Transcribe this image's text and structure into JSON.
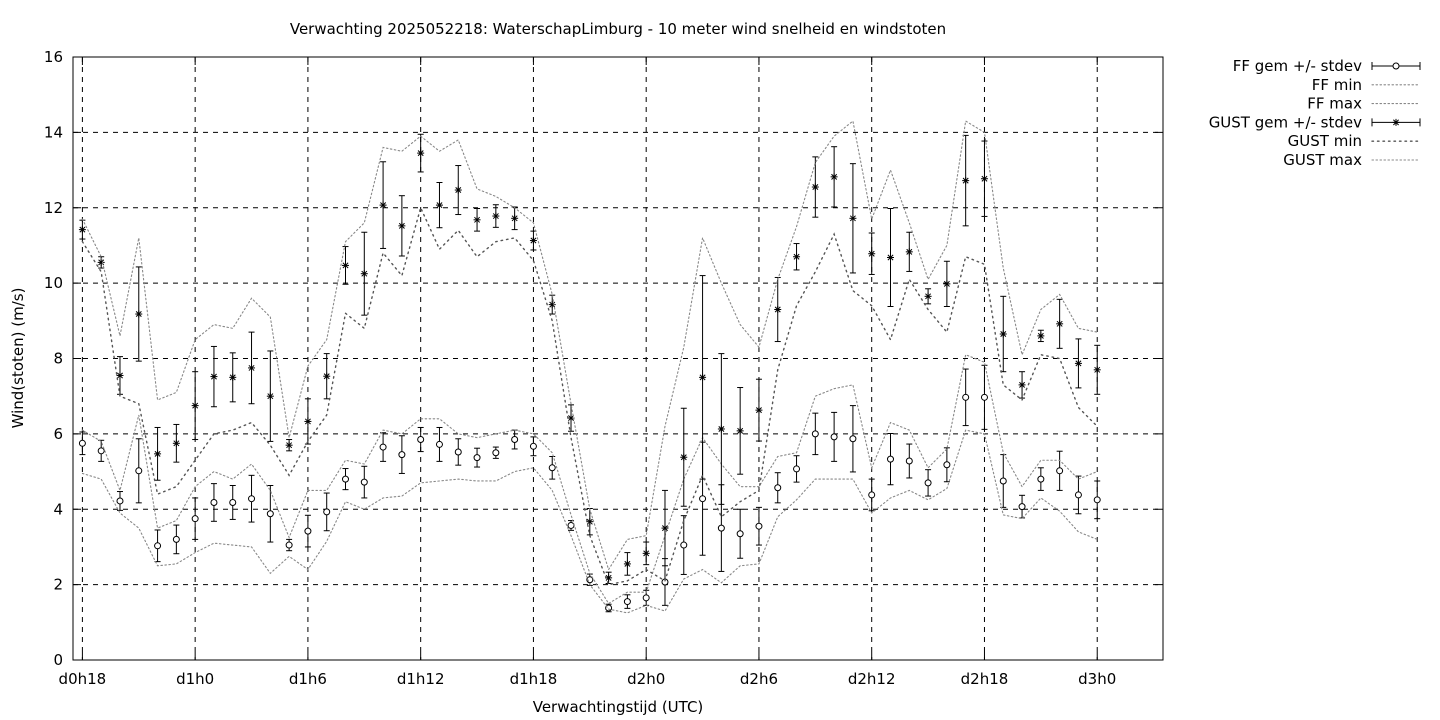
{
  "chart_data": {
    "type": "line",
    "title": "Verwachting 2025052218: WaterschapLimburg - 10 meter wind snelheid en windstoten",
    "xlabel": "Verwachtingstijd (UTC)",
    "ylabel": "Wind(stoten) (m/s)",
    "ylim": [
      0,
      16
    ],
    "yticks": [
      0,
      2,
      4,
      6,
      8,
      10,
      12,
      14,
      16
    ],
    "xlim": [
      -0.5,
      57.5
    ],
    "xtick_labels": [
      "d0h18",
      "d1h0",
      "d1h6",
      "d1h12",
      "d1h18",
      "d2h0",
      "d2h6",
      "d2h12",
      "d2h18",
      "d3h0"
    ],
    "xtick_positions": [
      0,
      6,
      12,
      18,
      24,
      30,
      36,
      42,
      48,
      54
    ],
    "grid": true,
    "legend_position": "outside-top-right",
    "series": [
      {
        "name": "FF gem +/- stdev",
        "style": "errorbar-circle",
        "values": [
          5.75,
          5.55,
          4.22,
          5.02,
          3.03,
          3.2,
          3.75,
          4.18,
          4.18,
          4.28,
          3.88,
          3.05,
          3.42,
          3.93,
          4.8,
          4.72,
          5.65,
          5.45,
          5.85,
          5.72,
          5.52,
          5.37,
          5.5,
          5.85,
          5.67,
          5.1,
          3.57,
          2.13,
          1.38,
          1.55,
          1.65,
          2.07,
          3.05,
          4.28,
          3.5,
          3.35,
          3.55,
          4.57,
          5.07,
          6.0,
          5.92,
          5.87,
          4.38,
          5.33,
          5.28,
          4.7,
          5.18,
          6.97,
          6.97,
          4.75,
          4.07,
          4.8,
          5.02,
          4.38,
          4.25
        ],
        "errors": [
          0.3,
          0.28,
          0.25,
          0.85,
          0.42,
          0.38,
          0.55,
          0.5,
          0.45,
          0.62,
          0.75,
          0.15,
          0.42,
          0.5,
          0.28,
          0.42,
          0.38,
          0.5,
          0.32,
          0.45,
          0.35,
          0.25,
          0.15,
          0.25,
          0.25,
          0.3,
          0.13,
          0.15,
          0.1,
          0.18,
          0.2,
          0.62,
          0.78,
          1.5,
          1.15,
          0.65,
          0.5,
          0.4,
          0.35,
          0.55,
          0.65,
          0.88,
          0.42,
          0.68,
          0.45,
          0.35,
          0.45,
          0.75,
          0.85,
          0.7,
          0.3,
          0.3,
          0.52,
          0.5,
          0.5
        ]
      },
      {
        "name": "FF min",
        "style": "dotted",
        "values": [
          4.95,
          4.8,
          3.9,
          3.5,
          2.5,
          2.55,
          2.85,
          3.1,
          3.05,
          3.0,
          2.3,
          2.75,
          2.4,
          3.15,
          4.2,
          4.0,
          4.3,
          4.35,
          4.7,
          4.75,
          4.8,
          4.75,
          4.75,
          5.0,
          5.1,
          4.5,
          3.3,
          2.0,
          1.35,
          1.25,
          1.45,
          1.3,
          2.15,
          2.4,
          2.05,
          2.5,
          2.55,
          3.8,
          4.25,
          4.8,
          4.8,
          4.8,
          3.9,
          4.3,
          4.5,
          4.25,
          4.55,
          6.1,
          6.0,
          3.85,
          3.75,
          4.3,
          3.95,
          3.4,
          3.2
        ]
      },
      {
        "name": "FF max",
        "style": "dotted",
        "values": [
          6.1,
          5.8,
          4.5,
          6.5,
          3.5,
          3.7,
          4.6,
          5.0,
          4.8,
          5.2,
          4.5,
          3.25,
          4.5,
          4.5,
          5.3,
          5.2,
          6.1,
          6.0,
          6.4,
          6.4,
          6.0,
          5.9,
          6.0,
          6.1,
          6.0,
          5.5,
          3.85,
          2.3,
          1.5,
          1.8,
          1.8,
          3.3,
          4.8,
          5.9,
          5.2,
          4.6,
          4.6,
          5.4,
          5.5,
          7.0,
          7.2,
          7.3,
          5.1,
          6.3,
          6.1,
          5.1,
          5.6,
          8.1,
          7.9,
          5.5,
          4.6,
          5.3,
          5.3,
          4.8,
          5.0
        ]
      },
      {
        "name": "GUST gem +/- stdev",
        "style": "errorbar-star",
        "values": [
          11.42,
          10.55,
          7.55,
          9.18,
          5.47,
          5.75,
          6.75,
          7.52,
          7.5,
          7.75,
          7.0,
          5.7,
          6.33,
          7.53,
          10.47,
          10.25,
          12.07,
          11.52,
          13.45,
          12.07,
          12.47,
          11.68,
          11.78,
          11.72,
          11.13,
          9.43,
          6.42,
          3.67,
          2.18,
          2.55,
          2.83,
          3.5,
          5.38,
          7.5,
          6.13,
          6.08,
          6.63,
          9.3,
          10.7,
          12.55,
          12.82,
          11.72,
          10.78,
          10.68,
          10.83,
          9.65,
          9.98,
          12.72,
          12.77,
          8.65,
          7.3,
          8.6,
          8.92,
          7.87,
          7.7
        ],
        "errors": [
          0.25,
          0.15,
          0.5,
          1.25,
          0.7,
          0.5,
          0.9,
          0.8,
          0.65,
          0.95,
          1.2,
          0.15,
          0.6,
          0.6,
          0.5,
          1.1,
          1.15,
          0.8,
          0.5,
          0.6,
          0.65,
          0.3,
          0.3,
          0.3,
          0.25,
          0.25,
          0.35,
          0.35,
          0.15,
          0.3,
          0.3,
          1.0,
          1.3,
          2.7,
          2.0,
          1.15,
          0.82,
          0.85,
          0.35,
          0.8,
          0.8,
          1.45,
          0.55,
          1.3,
          0.52,
          0.2,
          0.6,
          1.2,
          1.0,
          1.0,
          0.35,
          0.15,
          0.65,
          0.65,
          0.65
        ]
      },
      {
        "name": "GUST min",
        "style": "dotted-sparse",
        "values": [
          11.1,
          10.3,
          7.0,
          6.8,
          4.4,
          4.6,
          5.3,
          6.0,
          6.1,
          6.3,
          5.7,
          4.9,
          5.8,
          6.5,
          9.2,
          8.8,
          10.8,
          10.2,
          12.0,
          10.9,
          11.4,
          10.7,
          11.1,
          11.2,
          10.6,
          9.0,
          5.9,
          3.3,
          2.0,
          2.1,
          2.4,
          2.1,
          3.7,
          4.9,
          3.8,
          4.2,
          4.5,
          7.7,
          9.4,
          10.3,
          11.3,
          9.8,
          9.4,
          8.5,
          10.1,
          9.3,
          8.7,
          10.7,
          10.5,
          7.3,
          6.9,
          8.1,
          8.0,
          6.7,
          6.2
        ]
      },
      {
        "name": "GUST max",
        "style": "dotted",
        "values": [
          11.7,
          10.7,
          8.6,
          11.2,
          6.9,
          7.1,
          8.5,
          8.9,
          8.8,
          9.6,
          9.1,
          5.9,
          7.8,
          8.5,
          11.1,
          11.6,
          13.6,
          13.5,
          13.9,
          13.5,
          13.8,
          12.5,
          12.3,
          12.0,
          11.6,
          9.7,
          6.8,
          4.0,
          2.4,
          3.2,
          3.3,
          6.2,
          8.3,
          11.2,
          10.0,
          8.9,
          8.3,
          10.1,
          11.5,
          13.2,
          13.9,
          14.3,
          11.7,
          13.0,
          11.6,
          10.1,
          11.0,
          14.3,
          14.0,
          10.4,
          8.1,
          9.3,
          9.7,
          8.8,
          8.7
        ]
      }
    ]
  }
}
